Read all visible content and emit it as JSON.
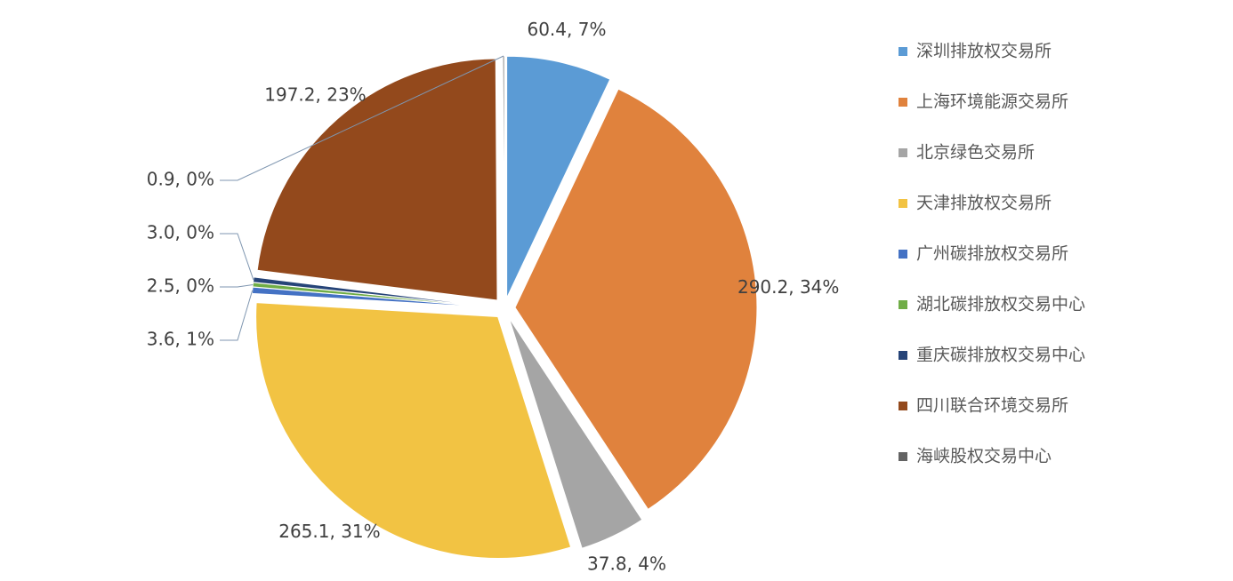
{
  "chart_data": {
    "type": "pie",
    "categories": [
      "深圳排放权交易所",
      "上海环境能源交易所",
      "北京绿色交易所",
      "天津排放权交易所",
      "广州碳排放权交易所",
      "湖北碳排放权交易中心",
      "重庆碳排放权交易中心",
      "四川联合环境交易所",
      "海峡股权交易中心"
    ],
    "values": [
      60.4,
      290.2,
      37.8,
      265.1,
      3.6,
      2.5,
      3.0,
      197.2,
      0.9
    ],
    "value_labels": [
      "60.4, 7%",
      "290.2, 34%",
      "37.8, 4%",
      "265.1, 31%",
      "3.6, 1%",
      "2.5, 0%",
      "3.0, 0%",
      "197.2, 23%",
      "0.9, 0%"
    ],
    "colors": [
      "#5b9bd5",
      "#e0823d",
      "#a5a5a5",
      "#f2c343",
      "#4472c4",
      "#70ad47",
      "#264478",
      "#93491c",
      "#636363"
    ],
    "legend": "right"
  }
}
